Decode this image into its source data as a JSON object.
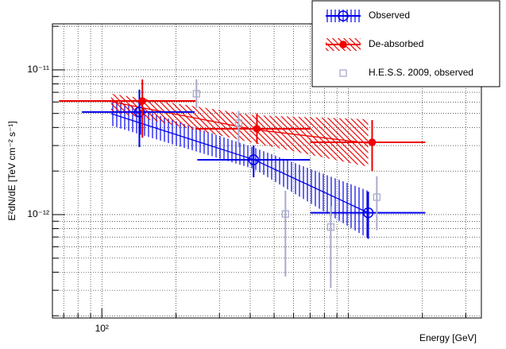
{
  "chart_data": {
    "type": "scatter",
    "x_label": "Energy [GeV]",
    "y_label": "E²dN/dE [TeV cm⁻² s⁻¹]",
    "log_x": true,
    "log_y": true,
    "grid": true,
    "xlim": [
      63,
      3470
    ],
    "ylim": [
      1.93e-13,
      2.08e-11
    ],
    "xticks": [
      {
        "value": 100,
        "label": "10²"
      }
    ],
    "xticks_minor": [
      70,
      80,
      90,
      200,
      300,
      400,
      500,
      600,
      700,
      800,
      900,
      1000,
      2000,
      3000
    ],
    "yticks": [
      {
        "value": 1e-12,
        "label": "10⁻¹²"
      },
      {
        "value": 1e-11,
        "label": "10⁻¹¹"
      }
    ],
    "yticks_minor": [
      2e-13,
      3e-13,
      4e-13,
      5e-13,
      6e-13,
      7e-13,
      8e-13,
      9e-13,
      2e-12,
      3e-12,
      4e-12,
      5e-12,
      6e-12,
      7e-12,
      8e-12,
      9e-12,
      2e-11
    ],
    "legend": "top-right",
    "series": [
      {
        "name": "Observed",
        "color": "#0000ee",
        "marker": "open-circle",
        "x": [
          142,
          413,
          1205
        ],
        "values": [
          5.12e-12,
          2.39e-12,
          1.03e-12
        ],
        "y_low": [
          2.93e-12,
          1.81e-12,
          6.8e-13
        ],
        "y_high": [
          7.3e-12,
          3e-12,
          1.44e-12
        ],
        "x_low": [
          83,
          244,
          702
        ],
        "x_high": [
          238,
          700,
          2055
        ],
        "band": {
          "x": [
            109,
            416,
            1205
          ],
          "center": [
            4.99e-12,
            2.39e-12,
            1.03e-12
          ],
          "low": [
            4.12e-12,
            2.06e-12,
            6.84e-13
          ],
          "high": [
            6.26e-12,
            2.9e-12,
            1.46e-12
          ],
          "hatch": "vertical"
        }
      },
      {
        "name": "De-absorbed",
        "color": "#ee0000",
        "marker": "filled-circle",
        "x": [
          146,
          426,
          1250
        ],
        "values": [
          6.1e-12,
          3.92e-12,
          3.16e-12
        ],
        "y_low": [
          3.4e-12,
          3.09e-12,
          2e-12
        ],
        "y_high": [
          8.6e-12,
          5e-12,
          4.5e-12
        ],
        "x_low": [
          67,
          240,
          702
        ],
        "x_high": [
          240,
          700,
          2055
        ],
        "band": {
          "x": [
            109,
            416,
            1205
          ],
          "center": [
            6.03e-12,
            3.87e-12,
            3.12e-12
          ],
          "low": [
            5.18e-12,
            3.12e-12,
            2.14e-12
          ],
          "high": [
            6.84e-12,
            4.86e-12,
            4.56e-12
          ],
          "hatch": "diagonal"
        }
      },
      {
        "name": "H.E.S.S. 2009, observed",
        "color": "#aaaacc",
        "marker": "open-square",
        "x": [
          242,
          359,
          556,
          849,
          1306
        ],
        "values": [
          6.84e-12,
          4.28e-12,
          1.01e-12,
          8.2e-13,
          1.32e-12
        ],
        "y_low": [
          5.45e-12,
          2.93e-12,
          3.73e-13,
          3.12e-13,
          7.8e-13
        ],
        "y_high": [
          8.6e-12,
          5.2e-12,
          1.46e-12,
          1.14e-12,
          1.84e-12
        ]
      }
    ]
  }
}
